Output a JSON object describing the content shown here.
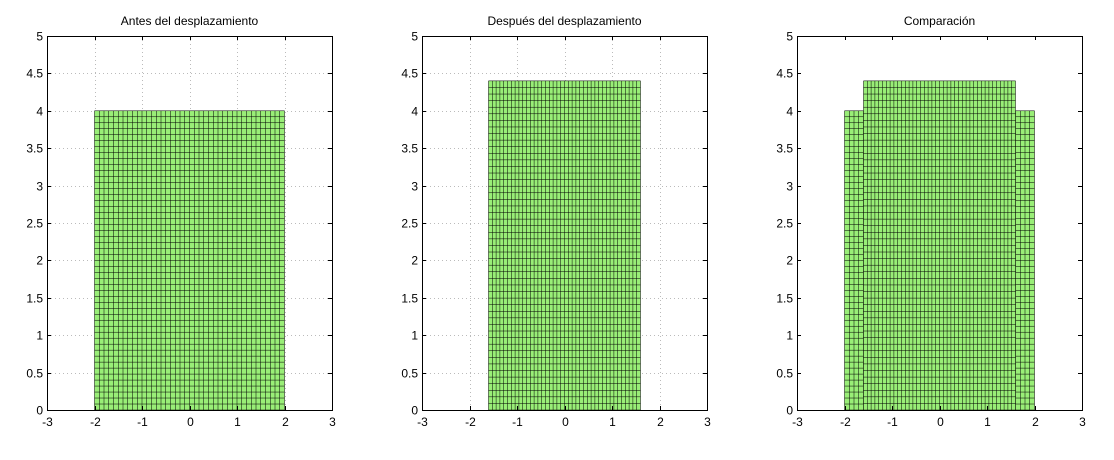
{
  "chart_data": [
    {
      "type": "mesh",
      "title": "Antes del desplazamiento",
      "xlim": [
        -3,
        3
      ],
      "ylim": [
        0,
        5
      ],
      "xticks": [
        "-3",
        "-2",
        "-1",
        "0",
        "1",
        "2",
        "3"
      ],
      "yticks": [
        "0",
        "0.5",
        "1",
        "1.5",
        "2",
        "2.5",
        "3",
        "3.5",
        "4",
        "4.5",
        "5"
      ],
      "grid": true,
      "meshes": [
        {
          "xmin": -2,
          "xmax": 2,
          "ymin": 0,
          "ymax": 4,
          "nx": 40,
          "ny": 50
        }
      ]
    },
    {
      "type": "mesh",
      "title": "Después del desplazamiento",
      "xlim": [
        -3,
        3
      ],
      "ylim": [
        0,
        5
      ],
      "xticks": [
        "-3",
        "-2",
        "-1",
        "0",
        "1",
        "2",
        "3"
      ],
      "yticks": [
        "0",
        "0.5",
        "1",
        "1.5",
        "2",
        "2.5",
        "3",
        "3.5",
        "4",
        "4.5",
        "5"
      ],
      "grid": true,
      "meshes": [
        {
          "xmin": -1.6,
          "xmax": 1.6,
          "ymin": 0,
          "ymax": 4.4,
          "nx": 40,
          "ny": 50
        }
      ]
    },
    {
      "type": "mesh",
      "title": "Comparación",
      "xlim": [
        -3,
        3
      ],
      "ylim": [
        0,
        5
      ],
      "xticks": [
        "-3",
        "-2",
        "-1",
        "0",
        "1",
        "2",
        "3"
      ],
      "yticks": [
        "0",
        "0.5",
        "1",
        "1.5",
        "2",
        "2.5",
        "3",
        "3.5",
        "4",
        "4.5",
        "5"
      ],
      "grid": false,
      "meshes": [
        {
          "xmin": -2,
          "xmax": 2,
          "ymin": 0,
          "ymax": 4,
          "nx": 40,
          "ny": 50
        },
        {
          "xmin": -1.6,
          "xmax": 1.6,
          "ymin": 0,
          "ymax": 4.4,
          "nx": 40,
          "ny": 50
        }
      ]
    }
  ],
  "colors": {
    "fill": "#99ee77",
    "mesh_line": "#000000",
    "grid": "#bbbbbb",
    "axis": "#000000",
    "background": "#ffffff"
  }
}
